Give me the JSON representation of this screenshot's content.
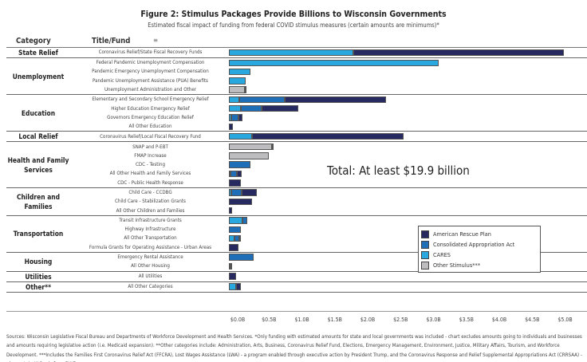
{
  "title": "Figure 2: Stimulus Packages Provide Billions to Wisconsin Governments",
  "subtitle": "Estimated fiscal impact of funding from federal COVID stimulus measures (certain amounts are minimums)*",
  "headers": {
    "category": "Category",
    "fund": "Title/Fund",
    "sort_icon": "sort-icon"
  },
  "total_label": "Total: At least $19.9 billion",
  "footer": "Sources: Wisconsin Legislative Fiscal Bureau and Departments of Workforce Development and Health Services. *Only funding with estimated amounts for state and local governments was included - chart excludes amounts  going to individuals and businesses and amounts requiring legislative action (i.e. Medicaid expansion). **Other categories include: Administration, Arts, Business, Coronavirus Relief Fund, Elections, Emergency Management, Environment, Justice, Military Affairs, Tourism, and Workforce Development. ***Includes the Families First Coronavirus Relief Act (FFCRA), Lost Wages Assistance (LWA) - a program enabled through executive action by President Trump, and the Coronavirus Response and Relief Supplemental Appropriations Act (CRRSAA) - plus certain UI funds from DWD.",
  "chart_data": {
    "type": "bar",
    "orientation": "horizontal-stacked",
    "xlim": [
      0,
      5.2
    ],
    "x_ticks": [
      "$0.0B",
      "$0.5B",
      "$1.0B",
      "$1.5B",
      "$2.0B",
      "$2.5B",
      "$3.0B",
      "$3.5B",
      "$4.0B",
      "$4.5B",
      "$5.0B"
    ],
    "x_tick_values": [
      0,
      0.5,
      1,
      1.5,
      2,
      2.5,
      3,
      3.5,
      4,
      4.5,
      5
    ],
    "unit": "billions USD",
    "legend_position": "lower-right",
    "series": [
      {
        "name": "CARES",
        "color": "#29a8e0"
      },
      {
        "name": "Consolidated Appropriation Act",
        "color": "#1f6fb8"
      },
      {
        "name": "American Rescue Plan",
        "color": "#272a60"
      },
      {
        "name": "Other Stimulus***",
        "color": "#bdbdbf"
      }
    ],
    "legend_order": [
      "American Rescue Plan",
      "Consolidated Appropriation Act",
      "CARES",
      "Other Stimulus***"
    ],
    "groups": [
      {
        "category": "State Relief",
        "rows": [
          {
            "fund": "Coronavirus Relief/State Fiscal Recovery Funds",
            "values": [
              1.89,
              0,
              3.2,
              0
            ]
          }
        ]
      },
      {
        "category": "Unemployment",
        "rows": [
          {
            "fund": "Federal Pandemic Unemployment Compensation",
            "values": [
              3.19,
              0,
              0,
              0
            ]
          },
          {
            "fund": "Pandemic Emergency Unemployment Compensation",
            "values": [
              0.33,
              0,
              0,
              0
            ]
          },
          {
            "fund": "Pandemic Unemployment Assistance (PUA) Benefits",
            "values": [
              0.26,
              0,
              0,
              0
            ]
          },
          {
            "fund": "Unemployment Administration and Other",
            "values": [
              0,
              0,
              0.02,
              0.24
            ]
          }
        ]
      },
      {
        "category": "Education",
        "rows": [
          {
            "fund": "Elementary and Secondary School Emergency Relief",
            "values": [
              0.16,
              0.69,
              1.54,
              0
            ]
          },
          {
            "fund": "Higher Education Emergency Relief",
            "values": [
              0.18,
              0.32,
              0.56,
              0
            ]
          },
          {
            "fund": "Governors Emergency Education Relief",
            "values": [
              0.04,
              0.1,
              0.07,
              0
            ]
          },
          {
            "fund": "All Other Education",
            "values": [
              0,
              0,
              0.06,
              0
            ]
          }
        ]
      },
      {
        "category": "Local Relief",
        "rows": [
          {
            "fund": "Coronavirus Relief/Local Fiscal Recovery Fund",
            "values": [
              0.35,
              0,
              2.31,
              0
            ]
          }
        ]
      },
      {
        "category": "Health and Family Services",
        "rows": [
          {
            "fund": "SNAP and P-EBT",
            "values": [
              0,
              0,
              0.02,
              0.65
            ]
          },
          {
            "fund": "FMAP Increase",
            "values": [
              0,
              0,
              0,
              0.6
            ]
          },
          {
            "fund": "CDC - Testing",
            "values": [
              0,
              0.33,
              0,
              0
            ]
          },
          {
            "fund": "All Other Health and Family Services",
            "values": [
              0.02,
              0.1,
              0.08,
              0
            ]
          },
          {
            "fund": "CDC - Public Health Response",
            "values": [
              0,
              0,
              0.18,
              0
            ]
          }
        ]
      },
      {
        "category": "Children and Families",
        "rows": [
          {
            "fund": "Child Care - CCDBG",
            "values": [
              0.04,
              0.15,
              0.23,
              0
            ]
          },
          {
            "fund": "Child Care - Stabilization Grants",
            "values": [
              0,
              0,
              0.35,
              0
            ]
          },
          {
            "fund": "All Other Children and Families",
            "values": [
              0,
              0,
              0.05,
              0
            ]
          }
        ]
      },
      {
        "category": "Transportation",
        "rows": [
          {
            "fund": "Transit Infrastructure Grants",
            "values": [
              0.2,
              0.08,
              0,
              0
            ]
          },
          {
            "fund": "Highway Infrastructure",
            "values": [
              0,
              0.18,
              0,
              0
            ]
          },
          {
            "fund": "All Other Transportation",
            "values": [
              0.08,
              0.08,
              0.01,
              0
            ]
          },
          {
            "fund": "Formula Grants for Operating Assistance - Urban Areas",
            "values": [
              0,
              0,
              0.14,
              0
            ]
          }
        ]
      },
      {
        "category": "Housing",
        "rows": [
          {
            "fund": "Emergency Rental Assistance",
            "values": [
              0,
              0.38,
              0,
              0
            ]
          },
          {
            "fund": "All Other Housing",
            "values": [
              0.02,
              0,
              0.03,
              0
            ]
          }
        ]
      },
      {
        "category": "Utilities",
        "rows": [
          {
            "fund": "All Utilities",
            "values": [
              0,
              0,
              0.11,
              0
            ]
          }
        ]
      },
      {
        "category": "Other**",
        "rows": [
          {
            "fund": "All Other Categories",
            "values": [
              0.11,
              0,
              0.07,
              0
            ]
          }
        ]
      }
    ]
  }
}
